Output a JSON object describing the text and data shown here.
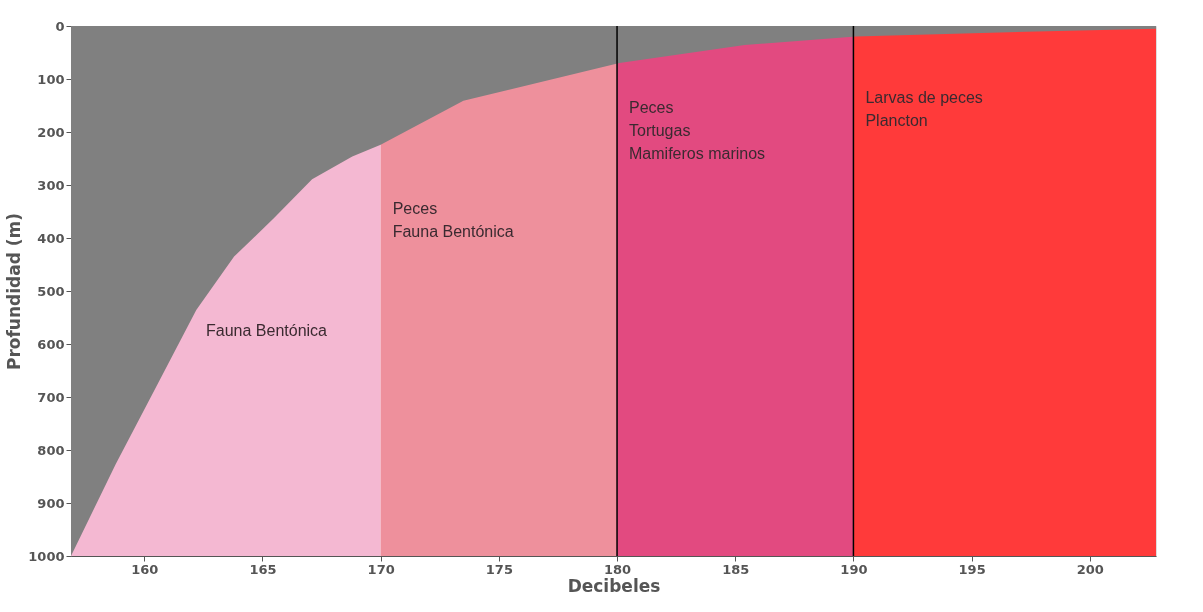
{
  "chart_data": {
    "type": "area",
    "xlabel": "Decibeles",
    "ylabel": "Profundidad (m)",
    "x": [
      156.9,
      158.8,
      160.5,
      162.2,
      163.8,
      165.5,
      167.1,
      168.8,
      170,
      173.5,
      180.1,
      185.4,
      190.1,
      197.3,
      202.8
    ],
    "series": [
      {
        "color": "#808080",
        "values": [
          1000,
          826,
          681,
          536,
          435,
          362,
          289,
          246,
          224,
          141,
          70,
          36,
          20,
          11,
          5
        ]
      }
    ],
    "xlim": [
      156.9,
      202.8
    ],
    "ylim": [
      1000,
      0
    ],
    "xticks": [
      160,
      165,
      170,
      175,
      180,
      185,
      190,
      195,
      200
    ],
    "yticks": [
      0,
      100,
      200,
      300,
      400,
      500,
      600,
      700,
      800,
      900,
      {
        "value": 1000,
        "label": "1000"
      }
    ],
    "grid": false,
    "bands": [
      {
        "axis": "x",
        "from": 156.9,
        "to": 170,
        "color": "#f4b8d2",
        "label": "Fauna Bentónica"
      },
      {
        "axis": "x",
        "from": 170,
        "to": 180,
        "color": "#ee909c",
        "label": "Peces\nFauna Bentónica"
      },
      {
        "axis": "x",
        "from": 180,
        "to": 190,
        "color": "#e24a80",
        "label": "Peces\nTortugas\nMamiferos marinos"
      },
      {
        "axis": "x",
        "from": 190,
        "to": 202.8,
        "color": "#ff3a3a",
        "label": "Larvas de peces\nPlancton"
      }
    ],
    "ref_lines": [
      {
        "axis": "x",
        "value": 180,
        "color": "#000000"
      },
      {
        "axis": "x",
        "value": 190,
        "color": "#000000"
      }
    ]
  }
}
